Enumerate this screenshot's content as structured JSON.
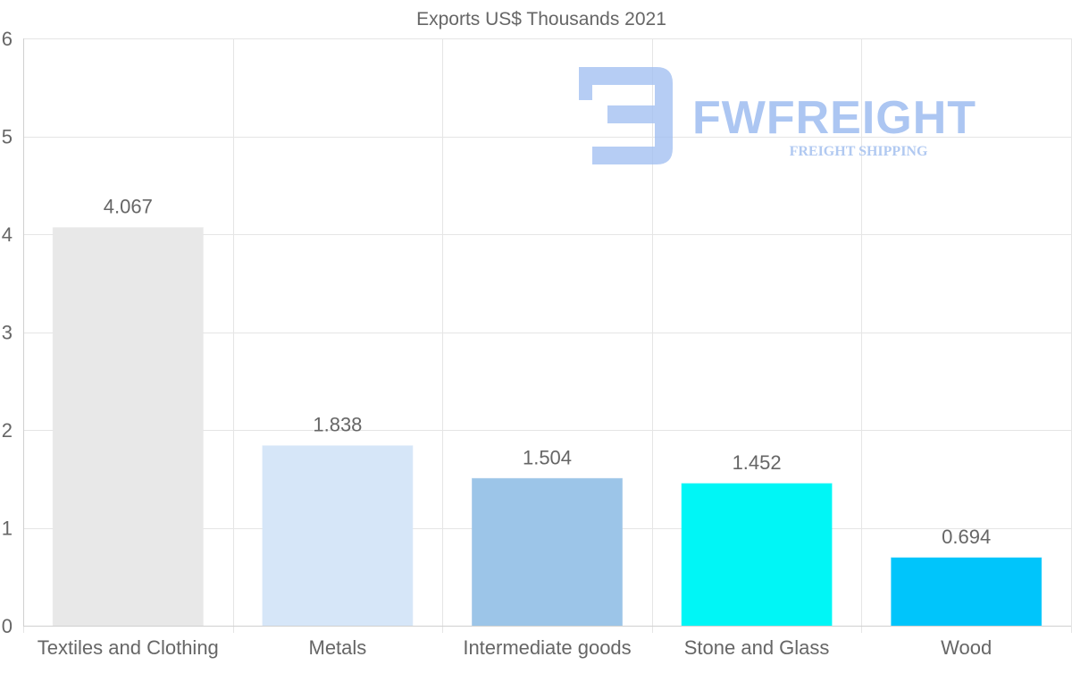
{
  "chart_data": {
    "type": "bar",
    "title": "Exports US$ Thousands 2021",
    "categories": [
      "Textiles and Clothing",
      "Metals",
      "Intermediate goods",
      "Stone and Glass",
      "Wood"
    ],
    "values": [
      4.067,
      1.838,
      1.504,
      1.452,
      0.694
    ],
    "value_labels": [
      "4.067",
      "1.838",
      "1.504",
      "1.452",
      "0.694"
    ],
    "colors": [
      "#e8e8e8",
      "#d6e6f8",
      "#9cc5e8",
      "#00f6f6",
      "#00c5fb"
    ],
    "xlabel": "",
    "ylabel": "",
    "ylim": [
      0,
      6
    ],
    "yticks": [
      0,
      1,
      2,
      3,
      4,
      5,
      6
    ],
    "grid": true,
    "legend": "none"
  },
  "watermark": {
    "title": "FWFREIGHT",
    "subtitle": "FREIGHT SHIPPING",
    "color": "#9dbcf0"
  }
}
